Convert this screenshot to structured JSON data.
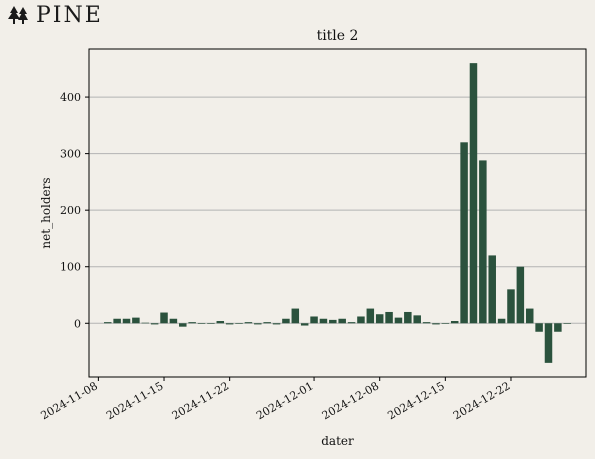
{
  "brand": {
    "name": "PINE",
    "icon": "pine-tree-icon"
  },
  "colors": {
    "background": "#f2efe9",
    "bar": "#2b523d",
    "grid": "#b3b3b3",
    "axis": "#000000"
  },
  "chart_data": {
    "type": "bar",
    "title": "title 2",
    "xlabel": "dater",
    "ylabel": "net_holders",
    "grid": "horizontal",
    "legend": "none",
    "xlim": [
      "2024-11-07",
      "2024-12-30"
    ],
    "ylim": [
      -95,
      485
    ],
    "xticks": [
      "2024-11-08",
      "2024-11-15",
      "2024-11-22",
      "2024-12-01",
      "2024-12-08",
      "2024-12-15",
      "2024-12-22"
    ],
    "yticks": [
      0,
      100,
      200,
      300,
      400
    ],
    "x": [
      "2024-11-09",
      "2024-11-10",
      "2024-11-11",
      "2024-11-12",
      "2024-11-13",
      "2024-11-14",
      "2024-11-15",
      "2024-11-16",
      "2024-11-17",
      "2024-11-18",
      "2024-11-19",
      "2024-11-20",
      "2024-11-21",
      "2024-11-22",
      "2024-11-23",
      "2024-11-24",
      "2024-11-25",
      "2024-11-26",
      "2024-11-27",
      "2024-11-28",
      "2024-11-29",
      "2024-11-30",
      "2024-12-01",
      "2024-12-02",
      "2024-12-03",
      "2024-12-04",
      "2024-12-05",
      "2024-12-06",
      "2024-12-07",
      "2024-12-08",
      "2024-12-09",
      "2024-12-10",
      "2024-12-11",
      "2024-12-12",
      "2024-12-13",
      "2024-12-14",
      "2024-12-15",
      "2024-12-16",
      "2024-12-17",
      "2024-12-18",
      "2024-12-19",
      "2024-12-20",
      "2024-12-21",
      "2024-12-22",
      "2024-12-23",
      "2024-12-24",
      "2024-12-25",
      "2024-12-26",
      "2024-12-27",
      "2024-12-28"
    ],
    "values": [
      2,
      8,
      8,
      10,
      1,
      -2,
      19,
      8,
      -6,
      2,
      0,
      0,
      4,
      -2,
      0,
      2,
      -2,
      2,
      -2,
      8,
      26,
      -4,
      12,
      8,
      6,
      8,
      2,
      12,
      26,
      16,
      20,
      10,
      20,
      14,
      2,
      -2,
      0,
      4,
      320,
      460,
      288,
      120,
      8,
      60,
      100,
      26,
      -15,
      -70,
      -15,
      0
    ]
  }
}
